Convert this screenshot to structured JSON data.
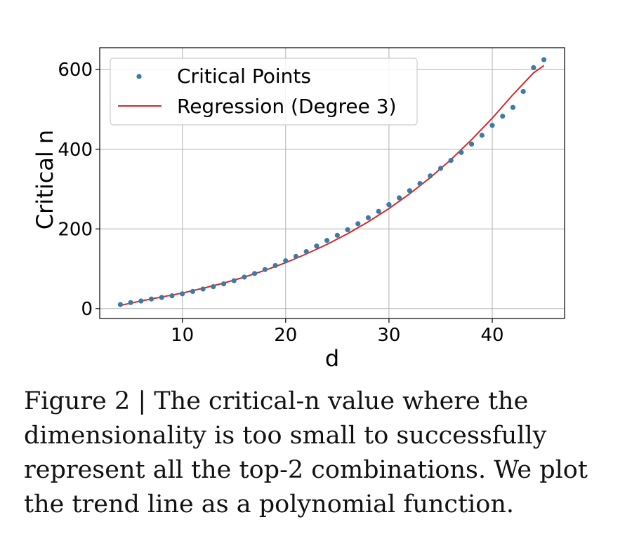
{
  "caption": "Figure 2 | The critical-n value where the dimensionality is too small to successfully represent all the top-2 combinations. We plot the trend line as a polynomial function.",
  "chart_data": {
    "type": "scatter",
    "xlabel": "d",
    "ylabel": "Critical n",
    "xlim": [
      2,
      47
    ],
    "ylim": [
      -25,
      655
    ],
    "xticks": [
      10,
      20,
      30,
      40
    ],
    "yticks": [
      0,
      200,
      400,
      600
    ],
    "grid": true,
    "legend_position": "top-left",
    "series": [
      {
        "name": "Critical Points",
        "kind": "scatter",
        "color": "#3a7ca5",
        "x": [
          4,
          5,
          6,
          7,
          8,
          9,
          10,
          11,
          12,
          13,
          14,
          15,
          16,
          17,
          18,
          19,
          20,
          21,
          22,
          23,
          24,
          25,
          26,
          27,
          28,
          29,
          30,
          31,
          32,
          33,
          34,
          35,
          36,
          37,
          38,
          39,
          40,
          41,
          42,
          43,
          44,
          45
        ],
        "y": [
          10,
          15,
          19,
          24,
          28,
          32,
          37,
          43,
          49,
          55,
          62,
          70,
          79,
          88,
          98,
          108,
          120,
          131,
          143,
          157,
          171,
          184,
          198,
          213,
          228,
          244,
          261,
          278,
          296,
          314,
          333,
          352,
          372,
          392,
          413,
          435,
          460,
          483,
          505,
          545,
          605,
          625
        ]
      },
      {
        "name": "Regression (Degree 3)",
        "kind": "line",
        "color": "#d62728",
        "x": [
          4,
          6,
          8,
          10,
          12,
          14,
          16,
          18,
          20,
          22,
          24,
          26,
          28,
          30,
          32,
          34,
          36,
          38,
          40,
          42,
          44,
          45
        ],
        "y": [
          8,
          19,
          29,
          39,
          51,
          64,
          79,
          96,
          115,
          137,
          161,
          188,
          218,
          251,
          288,
          329,
          374,
          424,
          478,
          537,
          592,
          610
        ]
      }
    ]
  }
}
